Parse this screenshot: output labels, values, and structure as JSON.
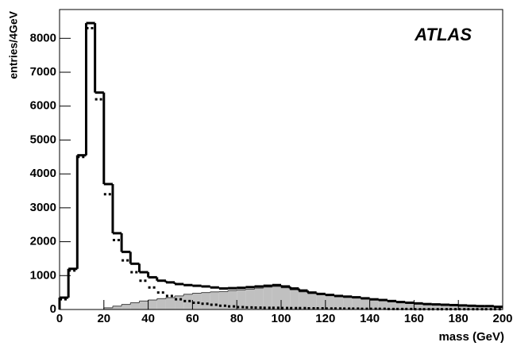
{
  "chart_data": {
    "type": "histogram",
    "annotation": "ATLAS",
    "x_label": "mass (GeV)",
    "y_label": "entries/4GeV",
    "bins": [
      0,
      4,
      8,
      12,
      16,
      20,
      24,
      28,
      32,
      36,
      40,
      44,
      48,
      52,
      56,
      60,
      64,
      68,
      72,
      76,
      80,
      84,
      88,
      92,
      96,
      100,
      104,
      108,
      112,
      116,
      120,
      124,
      128,
      132,
      136,
      140,
      144,
      148,
      152,
      156,
      160,
      164,
      168,
      172,
      176,
      180,
      184,
      188,
      192,
      196,
      200
    ],
    "series": [
      {
        "color": "#c0c0c0",
        "style": "filled",
        "values": [
          0,
          0,
          0,
          0,
          0,
          50,
          100,
          150,
          200,
          250,
          280,
          320,
          350,
          400,
          450,
          480,
          500,
          520,
          530,
          560,
          580,
          600,
          630,
          660,
          680,
          640,
          580,
          520,
          470,
          440,
          410,
          380,
          360,
          340,
          310,
          280,
          260,
          230,
          200,
          185,
          170,
          150,
          140,
          130,
          120,
          110,
          100,
          90,
          90,
          70
        ]
      },
      {
        "color": "#000000",
        "style": "dotted",
        "values": [
          300,
          1150,
          4500,
          8300,
          6200,
          3400,
          2050,
          1450,
          1100,
          850,
          650,
          500,
          400,
          300,
          250,
          200,
          170,
          140,
          110,
          90,
          70,
          60,
          55,
          50,
          50,
          45,
          40,
          40,
          35,
          35,
          30,
          30,
          25,
          25,
          20,
          20,
          20,
          15,
          15,
          15,
          10,
          10,
          10,
          10,
          10,
          10,
          10,
          10,
          10,
          10
        ]
      },
      {
        "color": "#000000",
        "style": "solid",
        "values": [
          350,
          1200,
          4550,
          8450,
          6400,
          3700,
          2250,
          1700,
          1350,
          1100,
          950,
          850,
          800,
          750,
          720,
          700,
          680,
          650,
          620,
          630,
          640,
          660,
          680,
          700,
          720,
          680,
          620,
          560,
          500,
          460,
          430,
          400,
          380,
          360,
          330,
          300,
          280,
          250,
          220,
          200,
          180,
          160,
          150,
          140,
          130,
          120,
          110,
          100,
          100,
          80
        ]
      }
    ],
    "xlim": [
      0,
      200
    ],
    "xticks": [
      0,
      20,
      40,
      60,
      80,
      100,
      120,
      140,
      160,
      180,
      200
    ],
    "ylim": [
      0,
      8850
    ],
    "yticks": [
      0,
      1000,
      2000,
      3000,
      4000,
      5000,
      6000,
      7000,
      8000
    ]
  }
}
